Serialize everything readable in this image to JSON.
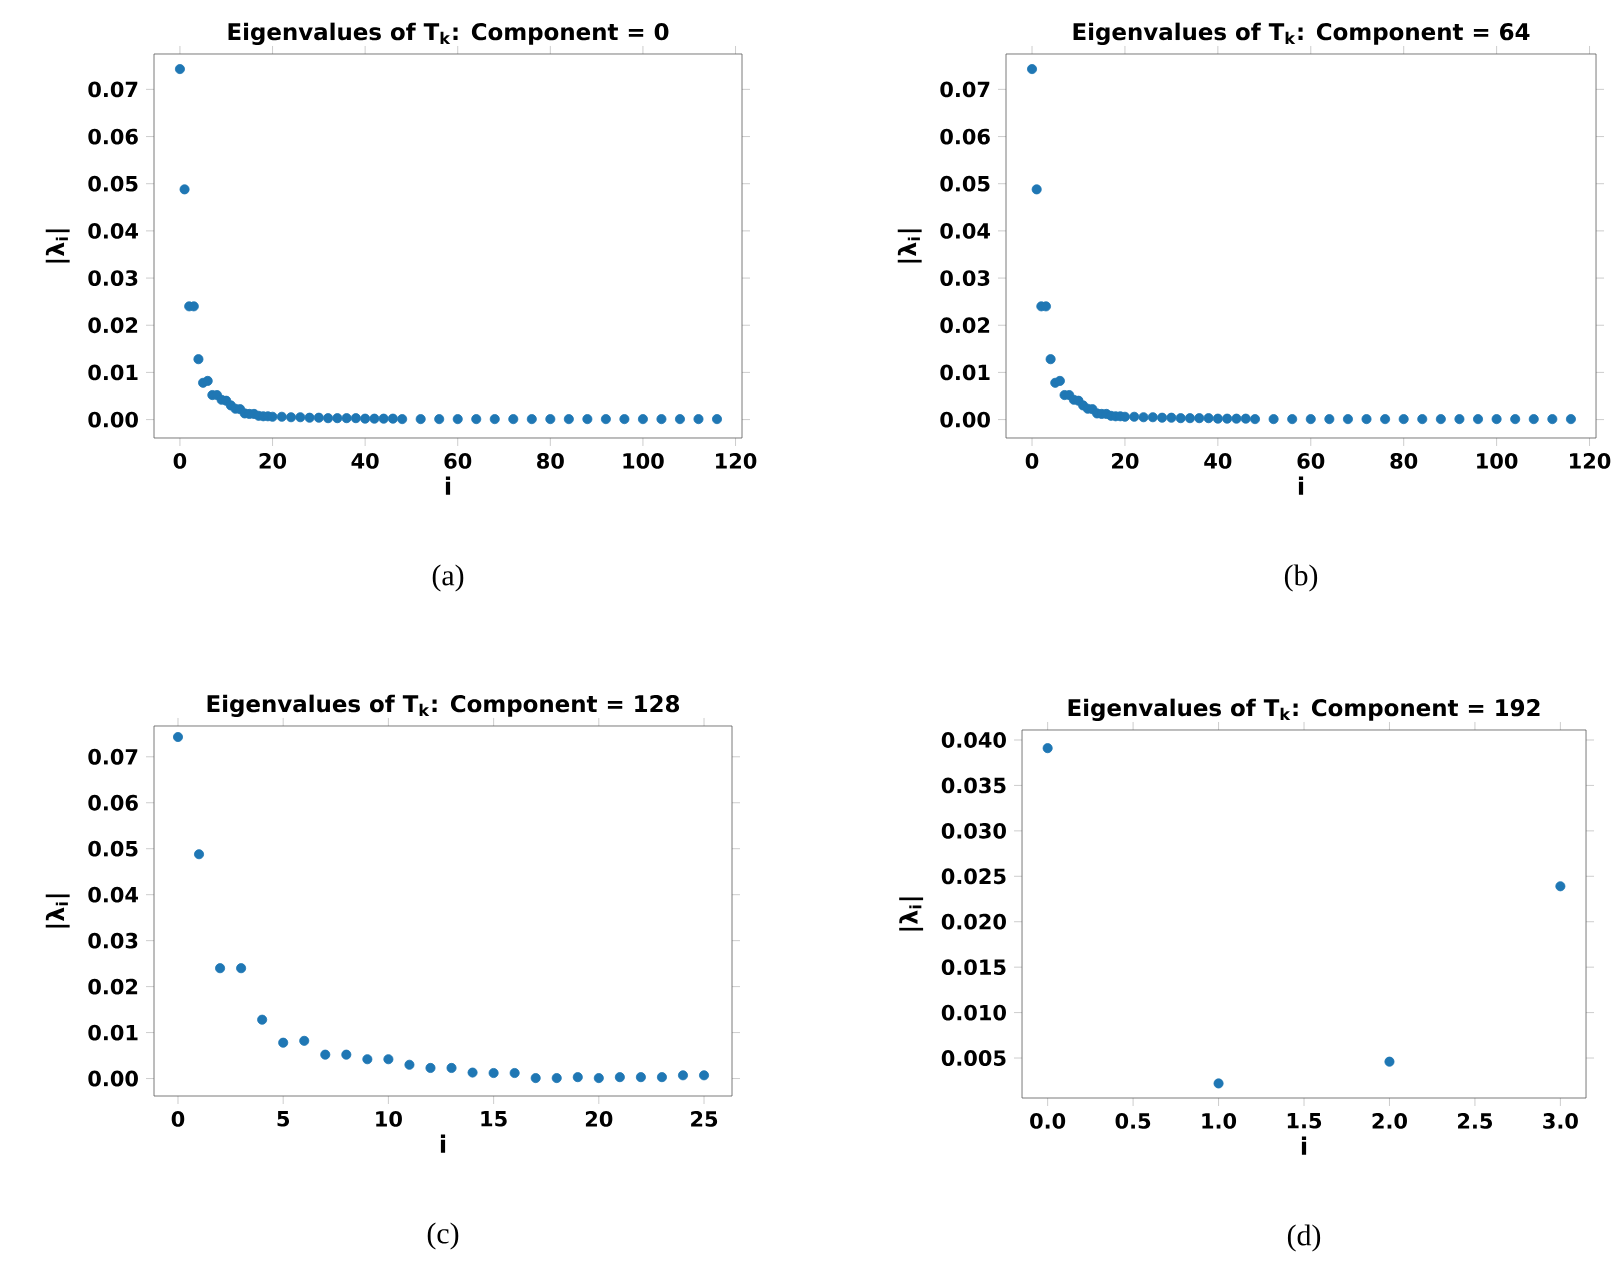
{
  "chart_data": [
    {
      "type": "scatter",
      "title": "Eigenvalues of T$_{k}$: Component = 0",
      "xlabel": "i",
      "ylabel": "|λ$_{i}$|",
      "marker": "circle",
      "grid": false,
      "annotations": [
        "(a)"
      ],
      "x": [
        0,
        1,
        2,
        3,
        4,
        5,
        6,
        7,
        8,
        9,
        10,
        11,
        12,
        13,
        14,
        15,
        16,
        17,
        18,
        19,
        20,
        22,
        24,
        26,
        28,
        30,
        32,
        34,
        36,
        38,
        40,
        42,
        44,
        46,
        48,
        52,
        56,
        60,
        64,
        68,
        72,
        76,
        80,
        84,
        88,
        92,
        96,
        100,
        104,
        108,
        112,
        116
      ],
      "series": [
        {
          "color": "#1f77b4",
          "values": [
            0.0743,
            0.0488,
            0.024,
            0.024,
            0.0128,
            0.0078,
            0.0082,
            0.0052,
            0.0052,
            0.0042,
            0.004,
            0.003,
            0.0023,
            0.0022,
            0.0013,
            0.0012,
            0.0012,
            0.0008,
            0.0007,
            0.0007,
            0.0006,
            0.0006,
            0.0005,
            0.0005,
            0.0004,
            0.0004,
            0.0003,
            0.0003,
            0.0003,
            0.0003,
            0.0002,
            0.0002,
            0.0002,
            0.0002,
            0.0001,
            0.0001,
            0.0001,
            0.0001,
            0.0001,
            0.0001,
            0.0001,
            0.0001,
            0.0001,
            0.0001,
            0.0001,
            0.0001,
            0.0001,
            0.0001,
            0.0001,
            0.0001,
            0.0001,
            0.0001
          ]
        }
      ],
      "xlim": [
        -5.6,
        121.4
      ],
      "ylim": [
        -0.0039,
        0.0775
      ],
      "xticks": [
        0,
        20,
        40,
        60,
        80,
        100,
        120
      ],
      "yticks": [
        {
          "value": 0,
          "label": "0.00"
        },
        {
          "value": 0.01,
          "label": "0.01"
        },
        {
          "value": 0.02,
          "label": "0.02"
        },
        {
          "value": 0.03,
          "label": "0.03"
        },
        {
          "value": 0.04,
          "label": "0.04"
        },
        {
          "value": 0.05,
          "label": "0.05"
        },
        {
          "value": 0.06,
          "label": "0.06"
        },
        {
          "value": 0.07,
          "label": "0.07"
        }
      ]
    },
    {
      "type": "scatter",
      "title": "Eigenvalues of T$_{k}$: Component = 64",
      "xlabel": "i",
      "ylabel": "|λ$_{i}$|",
      "marker": "circle",
      "grid": false,
      "annotations": [
        "(b)"
      ],
      "x": [
        0,
        1,
        2,
        3,
        4,
        5,
        6,
        7,
        8,
        9,
        10,
        11,
        12,
        13,
        14,
        15,
        16,
        17,
        18,
        19,
        20,
        22,
        24,
        26,
        28,
        30,
        32,
        34,
        36,
        38,
        40,
        42,
        44,
        46,
        48,
        52,
        56,
        60,
        64,
        68,
        72,
        76,
        80,
        84,
        88,
        92,
        96,
        100,
        104,
        108,
        112,
        116
      ],
      "series": [
        {
          "color": "#1f77b4",
          "values": [
            0.0743,
            0.0488,
            0.024,
            0.024,
            0.0128,
            0.0078,
            0.0082,
            0.0052,
            0.0052,
            0.0042,
            0.004,
            0.003,
            0.0023,
            0.0022,
            0.0013,
            0.0012,
            0.0012,
            0.0008,
            0.0007,
            0.0007,
            0.0006,
            0.0006,
            0.0005,
            0.0005,
            0.0004,
            0.0004,
            0.0003,
            0.0003,
            0.0003,
            0.0003,
            0.0002,
            0.0002,
            0.0002,
            0.0002,
            0.0001,
            0.0001,
            0.0001,
            0.0001,
            0.0001,
            0.0001,
            0.0001,
            0.0001,
            0.0001,
            0.0001,
            0.0001,
            0.0001,
            0.0001,
            0.0001,
            0.0001,
            0.0001,
            0.0001,
            0.0001
          ]
        }
      ],
      "xlim": [
        -5.6,
        121.4
      ],
      "ylim": [
        -0.0039,
        0.0775
      ],
      "xticks": [
        0,
        20,
        40,
        60,
        80,
        100,
        120
      ],
      "yticks": [
        {
          "value": 0,
          "label": "0.00"
        },
        {
          "value": 0.01,
          "label": "0.01"
        },
        {
          "value": 0.02,
          "label": "0.02"
        },
        {
          "value": 0.03,
          "label": "0.03"
        },
        {
          "value": 0.04,
          "label": "0.04"
        },
        {
          "value": 0.05,
          "label": "0.05"
        },
        {
          "value": 0.06,
          "label": "0.06"
        },
        {
          "value": 0.07,
          "label": "0.07"
        }
      ]
    },
    {
      "type": "scatter",
      "title": "Eigenvalues of T$_{k}$: Component = 128",
      "xlabel": "i",
      "ylabel": "|λ$_{i}$|",
      "marker": "circle",
      "grid": false,
      "annotations": [
        "(c)"
      ],
      "x": [
        0,
        1,
        2,
        3,
        4,
        5,
        6,
        7,
        8,
        9,
        10,
        11,
        12,
        13,
        14,
        15,
        16,
        17,
        18,
        19,
        20,
        21,
        22,
        23,
        24,
        25
      ],
      "series": [
        {
          "color": "#1f77b4",
          "values": [
            0.0743,
            0.0488,
            0.024,
            0.024,
            0.0128,
            0.0078,
            0.0082,
            0.0052,
            0.0052,
            0.0042,
            0.0042,
            0.003,
            0.0023,
            0.0023,
            0.0013,
            0.0012,
            0.0012,
            0.0001,
            0.0001,
            0.0003,
            0.0001,
            0.0003,
            0.0003,
            0.0003,
            0.0007,
            0.0007
          ]
        }
      ],
      "xlim": [
        -1.14,
        26.33
      ],
      "ylim": [
        -0.0038,
        0.0767
      ],
      "xticks": [
        0,
        5,
        10,
        15,
        20,
        25
      ],
      "yticks": [
        {
          "value": 0,
          "label": "0.00"
        },
        {
          "value": 0.01,
          "label": "0.01"
        },
        {
          "value": 0.02,
          "label": "0.02"
        },
        {
          "value": 0.03,
          "label": "0.03"
        },
        {
          "value": 0.04,
          "label": "0.04"
        },
        {
          "value": 0.05,
          "label": "0.05"
        },
        {
          "value": 0.06,
          "label": "0.06"
        },
        {
          "value": 0.07,
          "label": "0.07"
        }
      ]
    },
    {
      "type": "scatter",
      "title": "Eigenvalues of T$_{k}$: Component = 192",
      "xlabel": "i",
      "ylabel": "|λ$_{i}$|",
      "marker": "circle",
      "grid": false,
      "annotations": [
        "(d)"
      ],
      "x": [
        0,
        1,
        2,
        3
      ],
      "series": [
        {
          "color": "#1f77b4",
          "values": [
            0.0391,
            0.0022,
            0.0046,
            0.0239
          ]
        }
      ],
      "xlim": [
        -0.15,
        3.15
      ],
      "ylim": [
        0.0006,
        0.0411
      ],
      "xticks": [
        {
          "value": 0,
          "label": "0.0"
        },
        {
          "value": 0.5,
          "label": "0.5"
        },
        {
          "value": 1,
          "label": "1.0"
        },
        {
          "value": 1.5,
          "label": "1.5"
        },
        {
          "value": 2,
          "label": "2.0"
        },
        {
          "value": 2.5,
          "label": "2.5"
        },
        {
          "value": 3,
          "label": "3.0"
        }
      ],
      "yticks": [
        0.005,
        {
          "value": 0.01,
          "label": "0.010"
        },
        0.015,
        {
          "value": 0.02,
          "label": "0.020"
        },
        0.025,
        {
          "value": 0.03,
          "label": "0.030"
        },
        0.035,
        {
          "value": 0.04,
          "label": "0.040"
        }
      ]
    }
  ]
}
